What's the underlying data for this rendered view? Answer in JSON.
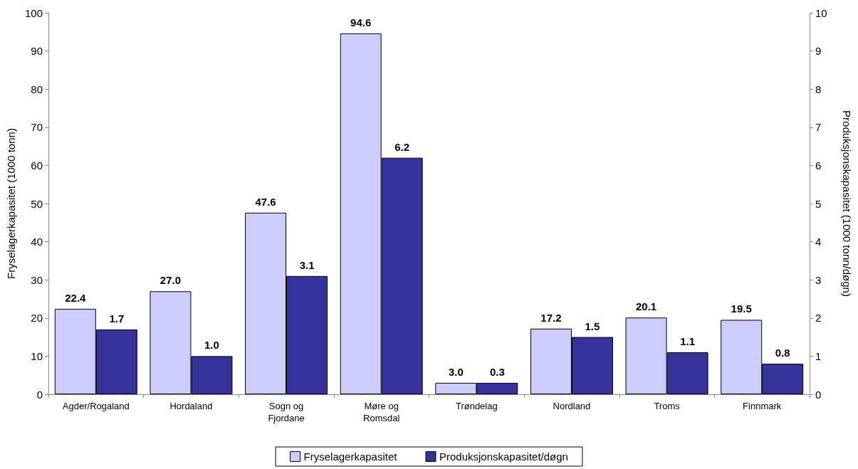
{
  "chart_data": {
    "type": "bar",
    "categories": [
      "Agder/Rogaland",
      "Hordaland",
      "Sogn og\nFjordane",
      "Møre og\nRomsdal",
      "Trøndelag",
      "Nordland",
      "Troms",
      "Finnmark"
    ],
    "series": [
      {
        "name": "Fryselagerkapasitet",
        "color": "#ccccff",
        "values": [
          22.4,
          27.0,
          47.6,
          94.6,
          3.0,
          17.2,
          20.1,
          19.5
        ],
        "value_labels": [
          "22.4",
          "27.0",
          "47.6",
          "94.6",
          "3.0",
          "17.2",
          "20.1",
          "19.5"
        ]
      },
      {
        "name": "Produksjonskapasitet/døgn",
        "color": "#333399",
        "axis": "y2",
        "values": [
          1.7,
          1.0,
          3.1,
          6.2,
          0.3,
          1.5,
          1.1,
          0.8
        ],
        "value_labels": [
          "1.7",
          "1.0",
          "3.1",
          "6.2",
          "0.3",
          "1.5",
          "1.1",
          "0.8"
        ]
      }
    ],
    "ylabel": "Fryselagerkapasitet (1000 tonn)",
    "y2label": "Produksjonskapasitet (1000 tonn/døgn)",
    "ylim": [
      0,
      100
    ],
    "yticks": [
      0,
      10,
      20,
      30,
      40,
      50,
      60,
      70,
      80,
      90,
      100
    ],
    "y2lim": [
      0,
      10
    ],
    "y2ticks": [
      0,
      1,
      2,
      3,
      4,
      5,
      6,
      7,
      8,
      9,
      10
    ],
    "grid": false,
    "legend": "bottom"
  }
}
